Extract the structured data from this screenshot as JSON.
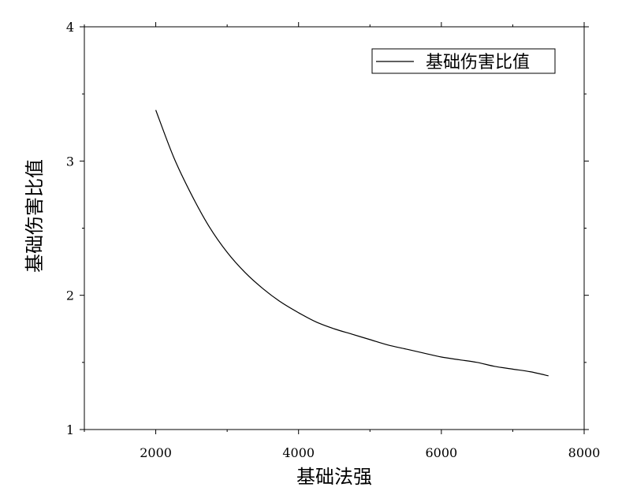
{
  "chart_data": {
    "type": "line",
    "title": "",
    "xlabel": "基础法强",
    "ylabel": "基础伤害比值",
    "xlim": [
      1000,
      8000
    ],
    "ylim": [
      1,
      4
    ],
    "x_ticks": [
      2000,
      4000,
      6000,
      8000
    ],
    "y_ticks": [
      1,
      2,
      3,
      4
    ],
    "grid": false,
    "legend_position": "top-right",
    "series": [
      {
        "name": "基础伤害比值",
        "color": "#000000",
        "x": [
          2000,
          2250,
          2500,
          2750,
          3000,
          3250,
          3500,
          3750,
          4000,
          4250,
          4500,
          4750,
          5000,
          5250,
          5500,
          5750,
          6000,
          6250,
          6500,
          6750,
          7000,
          7250,
          7500
        ],
        "y": [
          3.38,
          3.03,
          2.75,
          2.51,
          2.32,
          2.17,
          2.05,
          1.95,
          1.87,
          1.8,
          1.75,
          1.71,
          1.67,
          1.63,
          1.6,
          1.57,
          1.54,
          1.52,
          1.5,
          1.47,
          1.45,
          1.43,
          1.4
        ]
      }
    ]
  }
}
